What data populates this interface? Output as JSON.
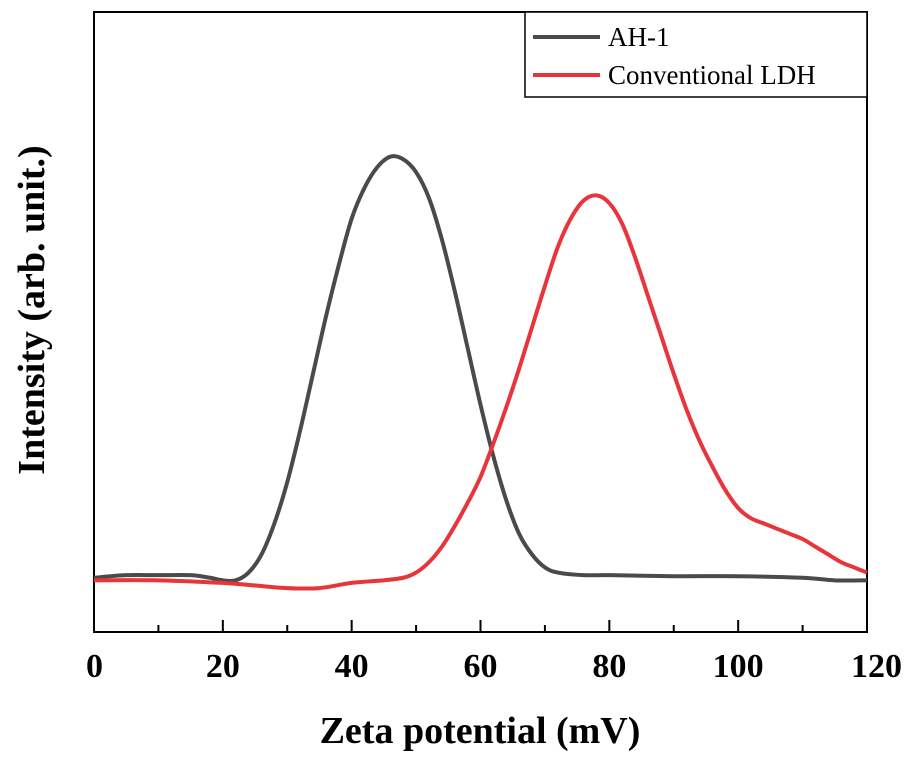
{
  "chart_data": {
    "type": "line",
    "xlabel": "Zeta potential (mV)",
    "ylabel": "Intensity (arb. unit.)",
    "xlim": [
      0,
      120
    ],
    "ylim": [
      -10,
      110
    ],
    "x_ticks": [
      0,
      20,
      40,
      60,
      80,
      100,
      120
    ],
    "x_tick_labels": [
      "0",
      "20",
      "40",
      "60",
      "80",
      "100",
      "120"
    ],
    "y_tick_labels_shown": false,
    "grid": false,
    "legend_position": "top-right",
    "series": [
      {
        "name": "AH-1",
        "color": "#4a4a4a",
        "points": [
          [
            0,
            0.5
          ],
          [
            5,
            1
          ],
          [
            10,
            1
          ],
          [
            15,
            1
          ],
          [
            18,
            0.5
          ],
          [
            20,
            0
          ],
          [
            22,
            0
          ],
          [
            24,
            1.5
          ],
          [
            26,
            5
          ],
          [
            28,
            11
          ],
          [
            30,
            19
          ],
          [
            32,
            29
          ],
          [
            34,
            40
          ],
          [
            36,
            51
          ],
          [
            38,
            61
          ],
          [
            40,
            70
          ],
          [
            42,
            76
          ],
          [
            44,
            80
          ],
          [
            46,
            82
          ],
          [
            48,
            81.5
          ],
          [
            50,
            79
          ],
          [
            52,
            74
          ],
          [
            54,
            66
          ],
          [
            56,
            56
          ],
          [
            58,
            45
          ],
          [
            60,
            34
          ],
          [
            62,
            24
          ],
          [
            64,
            15.5
          ],
          [
            66,
            9
          ],
          [
            68,
            5
          ],
          [
            70,
            2.5
          ],
          [
            72,
            1.5
          ],
          [
            76,
            1
          ],
          [
            80,
            1
          ],
          [
            90,
            0.8
          ],
          [
            100,
            0.8
          ],
          [
            110,
            0.5
          ],
          [
            115,
            0
          ],
          [
            120,
            0
          ]
        ]
      },
      {
        "name": "Conventional LDH",
        "color": "#e8353b",
        "points": [
          [
            0,
            0
          ],
          [
            10,
            0
          ],
          [
            20,
            -0.5
          ],
          [
            25,
            -1
          ],
          [
            30,
            -1.5
          ],
          [
            35,
            -1.5
          ],
          [
            40,
            -0.5
          ],
          [
            45,
            0
          ],
          [
            48,
            0.5
          ],
          [
            50,
            1.5
          ],
          [
            52,
            3.5
          ],
          [
            54,
            6.5
          ],
          [
            56,
            10.5
          ],
          [
            58,
            15
          ],
          [
            60,
            20
          ],
          [
            62,
            26.5
          ],
          [
            64,
            33.5
          ],
          [
            66,
            41
          ],
          [
            68,
            49
          ],
          [
            70,
            57
          ],
          [
            72,
            64.5
          ],
          [
            74,
            70
          ],
          [
            76,
            73.5
          ],
          [
            78,
            74.5
          ],
          [
            80,
            73
          ],
          [
            82,
            69
          ],
          [
            84,
            62.5
          ],
          [
            86,
            55
          ],
          [
            88,
            47.5
          ],
          [
            90,
            40
          ],
          [
            92,
            33
          ],
          [
            94,
            27
          ],
          [
            96,
            22
          ],
          [
            98,
            17.5
          ],
          [
            100,
            14
          ],
          [
            102,
            12
          ],
          [
            104,
            11
          ],
          [
            106,
            10
          ],
          [
            108,
            9
          ],
          [
            110,
            8
          ],
          [
            112,
            6.5
          ],
          [
            114,
            5
          ],
          [
            116,
            3.5
          ],
          [
            118,
            2.5
          ],
          [
            120,
            1.5
          ]
        ]
      }
    ]
  }
}
